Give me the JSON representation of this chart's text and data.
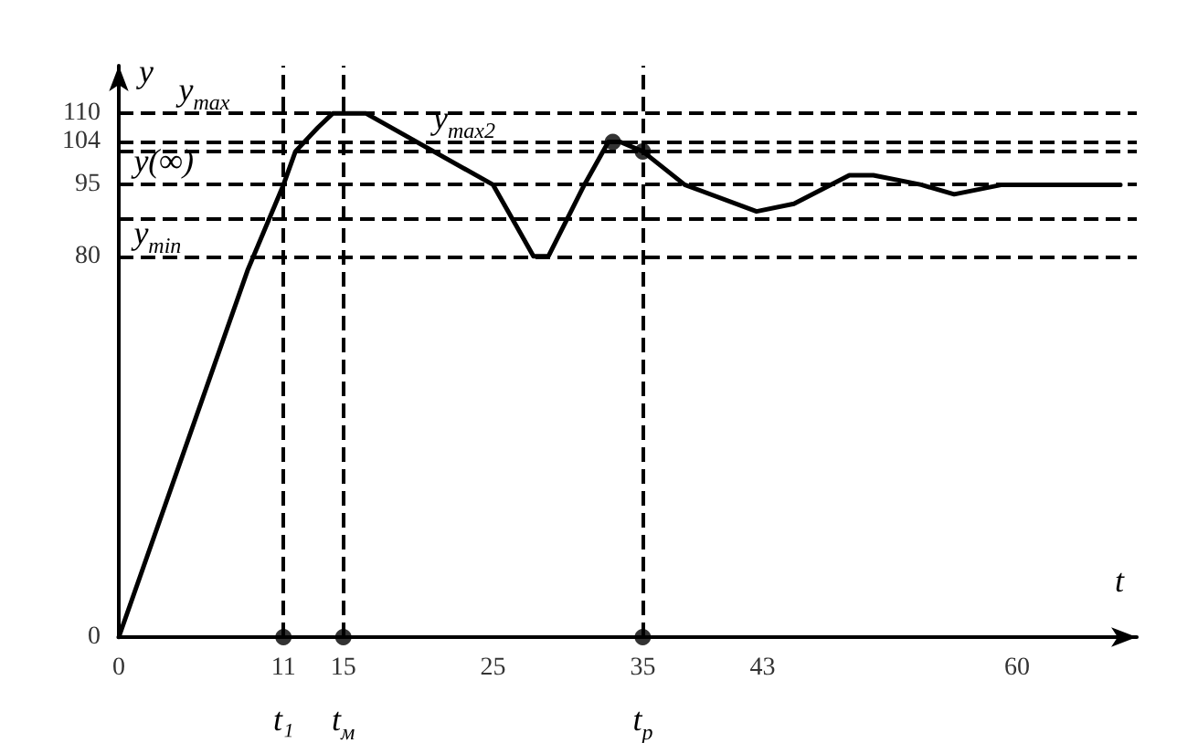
{
  "chart_data": {
    "type": "line",
    "xlabel": "t",
    "ylabel": "y",
    "x": [
      0,
      8.6,
      11,
      11.8,
      13.3,
      14.3,
      16.5,
      25,
      27.7,
      28.7,
      31.1,
      32.7,
      33.5,
      35,
      37.8,
      42.6,
      45.1,
      48.8,
      50.4,
      53.6,
      55.8,
      59,
      66.9
    ],
    "series": [
      {
        "color": "#000000",
        "values": [
          0,
          77,
          95,
          102,
          107,
          110,
          110,
          95,
          80,
          80,
          95,
          104,
          104,
          102,
          95,
          89.4,
          91,
          97,
          97,
          95,
          93,
          95,
          95
        ]
      },
      {
        "type": "scatter",
        "marker": "circle",
        "color": "#000000",
        "x": [
          11,
          15,
          35,
          33,
          35
        ],
        "values": [
          0,
          0,
          0,
          104,
          102
        ]
      }
    ],
    "xlim": [
      0,
      68
    ],
    "ylim": [
      0,
      120
    ],
    "xticks": [
      0,
      11,
      15,
      25,
      35,
      43,
      60
    ],
    "yticks": [
      0,
      80,
      95,
      104,
      110
    ],
    "grid": false,
    "marker": "none",
    "ref_lines": [
      {
        "axis": "y",
        "value": 110,
        "line_style": "dashed",
        "color": "#000000"
      },
      {
        "axis": "y",
        "value": 104,
        "line_style": "dashed",
        "color": "#000000"
      },
      {
        "axis": "y",
        "value": 102,
        "line_style": "dashed",
        "color": "#000000"
      },
      {
        "axis": "y",
        "value": 95,
        "line_style": "dashed",
        "color": "#000000"
      },
      {
        "axis": "y",
        "value": 88,
        "line_style": "dashed",
        "color": "#000000"
      },
      {
        "axis": "y",
        "value": 80,
        "line_style": "dashed",
        "color": "#000000"
      },
      {
        "axis": "x",
        "value": 11,
        "line_style": "dashed",
        "color": "#000000"
      },
      {
        "axis": "x",
        "value": 15,
        "line_style": "dashed",
        "color": "#000000"
      },
      {
        "axis": "x",
        "value": 35,
        "line_style": "dashed",
        "color": "#000000"
      }
    ],
    "annotations": [
      {
        "text": "y$_{max}$",
        "x": 4,
        "y": 110
      },
      {
        "text": "y$_{max2}$",
        "x": 21,
        "y": 104
      },
      {
        "text": "y(∞)",
        "x": 1,
        "y": 95
      },
      {
        "text": "y$_{min}$",
        "x": 1,
        "y": 80
      },
      {
        "text": "t₁",
        "x": 11,
        "y": 0
      },
      {
        "text": "t$_{м}$",
        "x": 15,
        "y": 0
      },
      {
        "text": "t$_{р}$",
        "x": 35,
        "y": 0
      }
    ]
  }
}
